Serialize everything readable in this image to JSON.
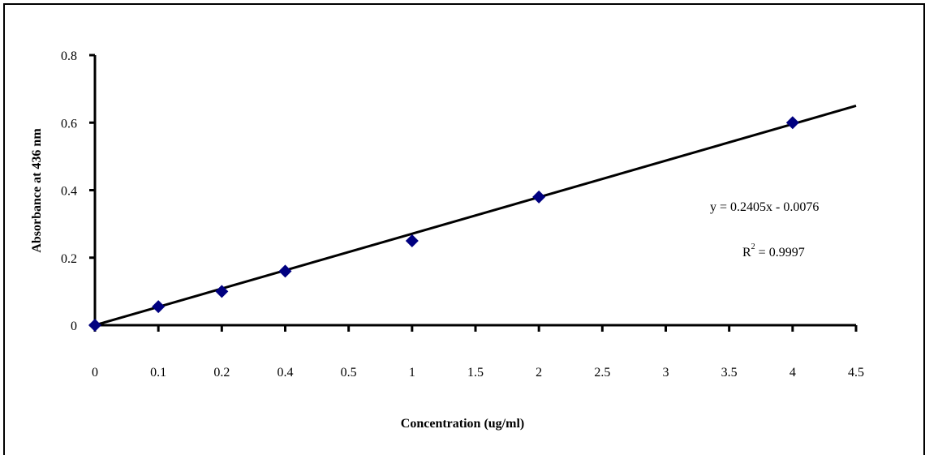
{
  "chart_data": {
    "type": "scatter",
    "x_label": "Concentration (ug/ml)",
    "y_label": "Absorbance at 436 nm",
    "categories": [
      "0",
      "0.1",
      "0.2",
      "0.4",
      "0.5",
      "1",
      "1.5",
      "2",
      "2.5",
      "3",
      "3.5",
      "4",
      "4.5"
    ],
    "series": [
      {
        "name": "Absorbance",
        "color": "#000080",
        "values": [
          0,
          0.055,
          0.1,
          0.16,
          null,
          0.25,
          null,
          0.38,
          null,
          null,
          null,
          0.6,
          null
        ]
      }
    ],
    "trendline": {
      "start": 0,
      "end": 0.65,
      "color": "#000000"
    },
    "equation": "y = 0.2405x - 0.0076",
    "r_squared": {
      "symbol": "R",
      "power": "2",
      "value": "= 0.9997"
    },
    "ylim": [
      0,
      0.8
    ],
    "yticks": [
      0,
      0.2,
      0.4,
      0.6,
      0.8
    ]
  }
}
